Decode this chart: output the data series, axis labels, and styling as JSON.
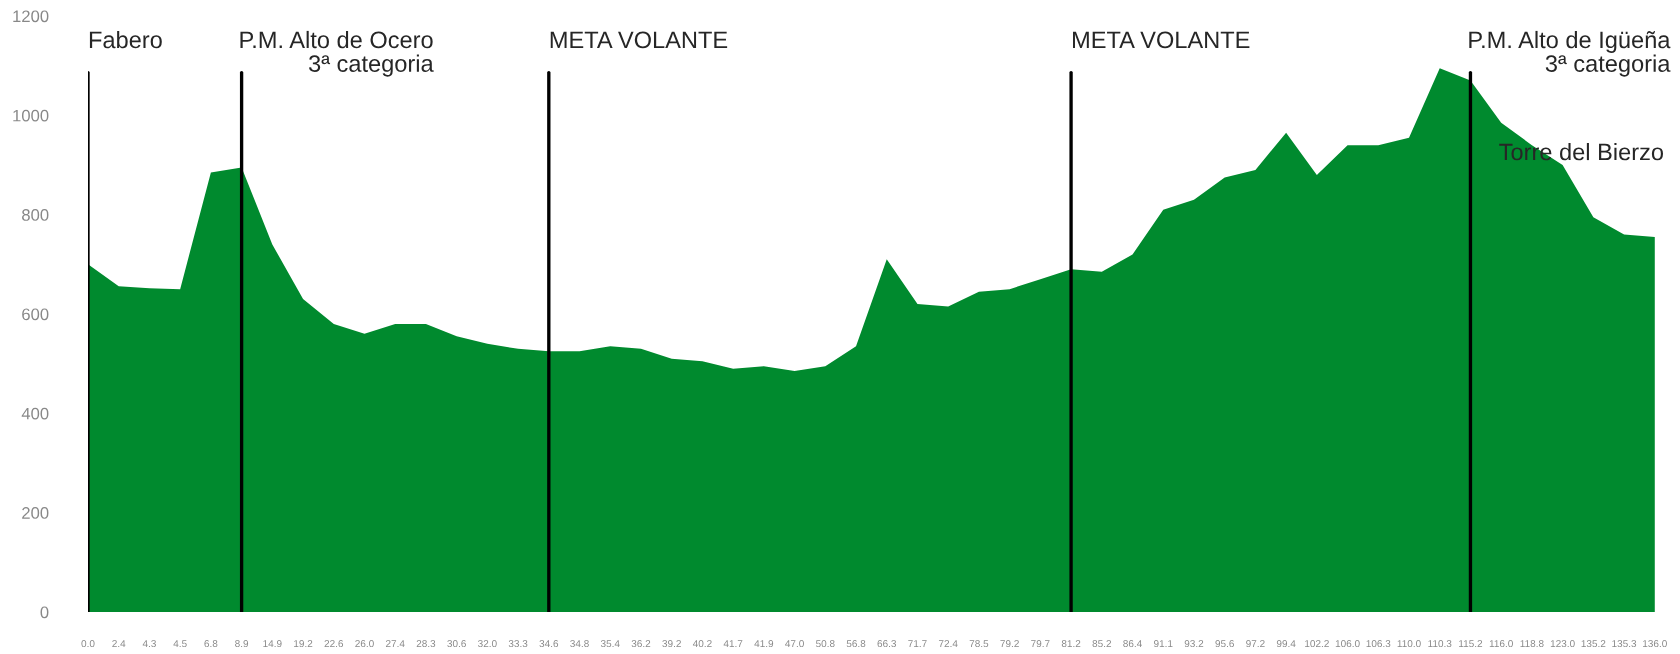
{
  "chart_data": {
    "type": "area",
    "categories": [
      "0.0",
      "2.4",
      "4.3",
      "4.5",
      "6.8",
      "8.9",
      "14.9",
      "19.2",
      "22.6",
      "26.0",
      "27.4",
      "28.3",
      "30.6",
      "32.0",
      "33.3",
      "34.6",
      "34.8",
      "35.4",
      "36.2",
      "39.2",
      "40.2",
      "41.7",
      "41.9",
      "47.0",
      "50.8",
      "56.8",
      "66.3",
      "71.7",
      "72.4",
      "78.5",
      "79.2",
      "79.7",
      "81.2",
      "85.2",
      "86.4",
      "91.1",
      "93.2",
      "95.6",
      "97.2",
      "99.4",
      "102.2",
      "106.0",
      "106.3",
      "110.0",
      "110.3",
      "115.2",
      "116.0",
      "118.8",
      "123.0",
      "135.2",
      "135.3",
      "136.0"
    ],
    "series": [
      {
        "color": "#008a2e",
        "values": [
          700,
          656,
          652,
          650,
          885,
          895,
          740,
          630,
          580,
          560,
          580,
          580,
          555,
          540,
          530,
          525,
          525,
          535,
          530,
          510,
          505,
          490,
          495,
          485,
          495,
          535,
          710,
          620,
          615,
          645,
          650,
          670,
          690,
          685,
          720,
          810,
          830,
          875,
          890,
          965,
          880,
          940,
          940,
          955,
          1095,
          1070,
          985,
          940,
          900,
          795,
          760,
          755
        ]
      }
    ],
    "ylim": [
      0,
      1200
    ],
    "yticks": [
      0,
      200,
      400,
      600,
      800,
      1000,
      1200
    ],
    "grid": false,
    "legend": false,
    "ref_lines": [
      {
        "axis": "x",
        "value": "0.0",
        "label": "Fabero",
        "color": "#000000"
      },
      {
        "axis": "x",
        "value": "8.9",
        "label": "P.M. Alto de Ocero\n3ª categoria",
        "color": "#000000"
      },
      {
        "axis": "x",
        "value": "34.6",
        "label": "META VOLANTE",
        "color": "#000000"
      },
      {
        "axis": "x",
        "value": "81.2",
        "label": "META VOLANTE",
        "color": "#000000"
      },
      {
        "axis": "x",
        "value": "115.2",
        "label": "P.M. Alto de Igüeña\n3ª categoria",
        "color": "#000000"
      }
    ],
    "annotations": [
      "Torre del Bierzo"
    ]
  }
}
